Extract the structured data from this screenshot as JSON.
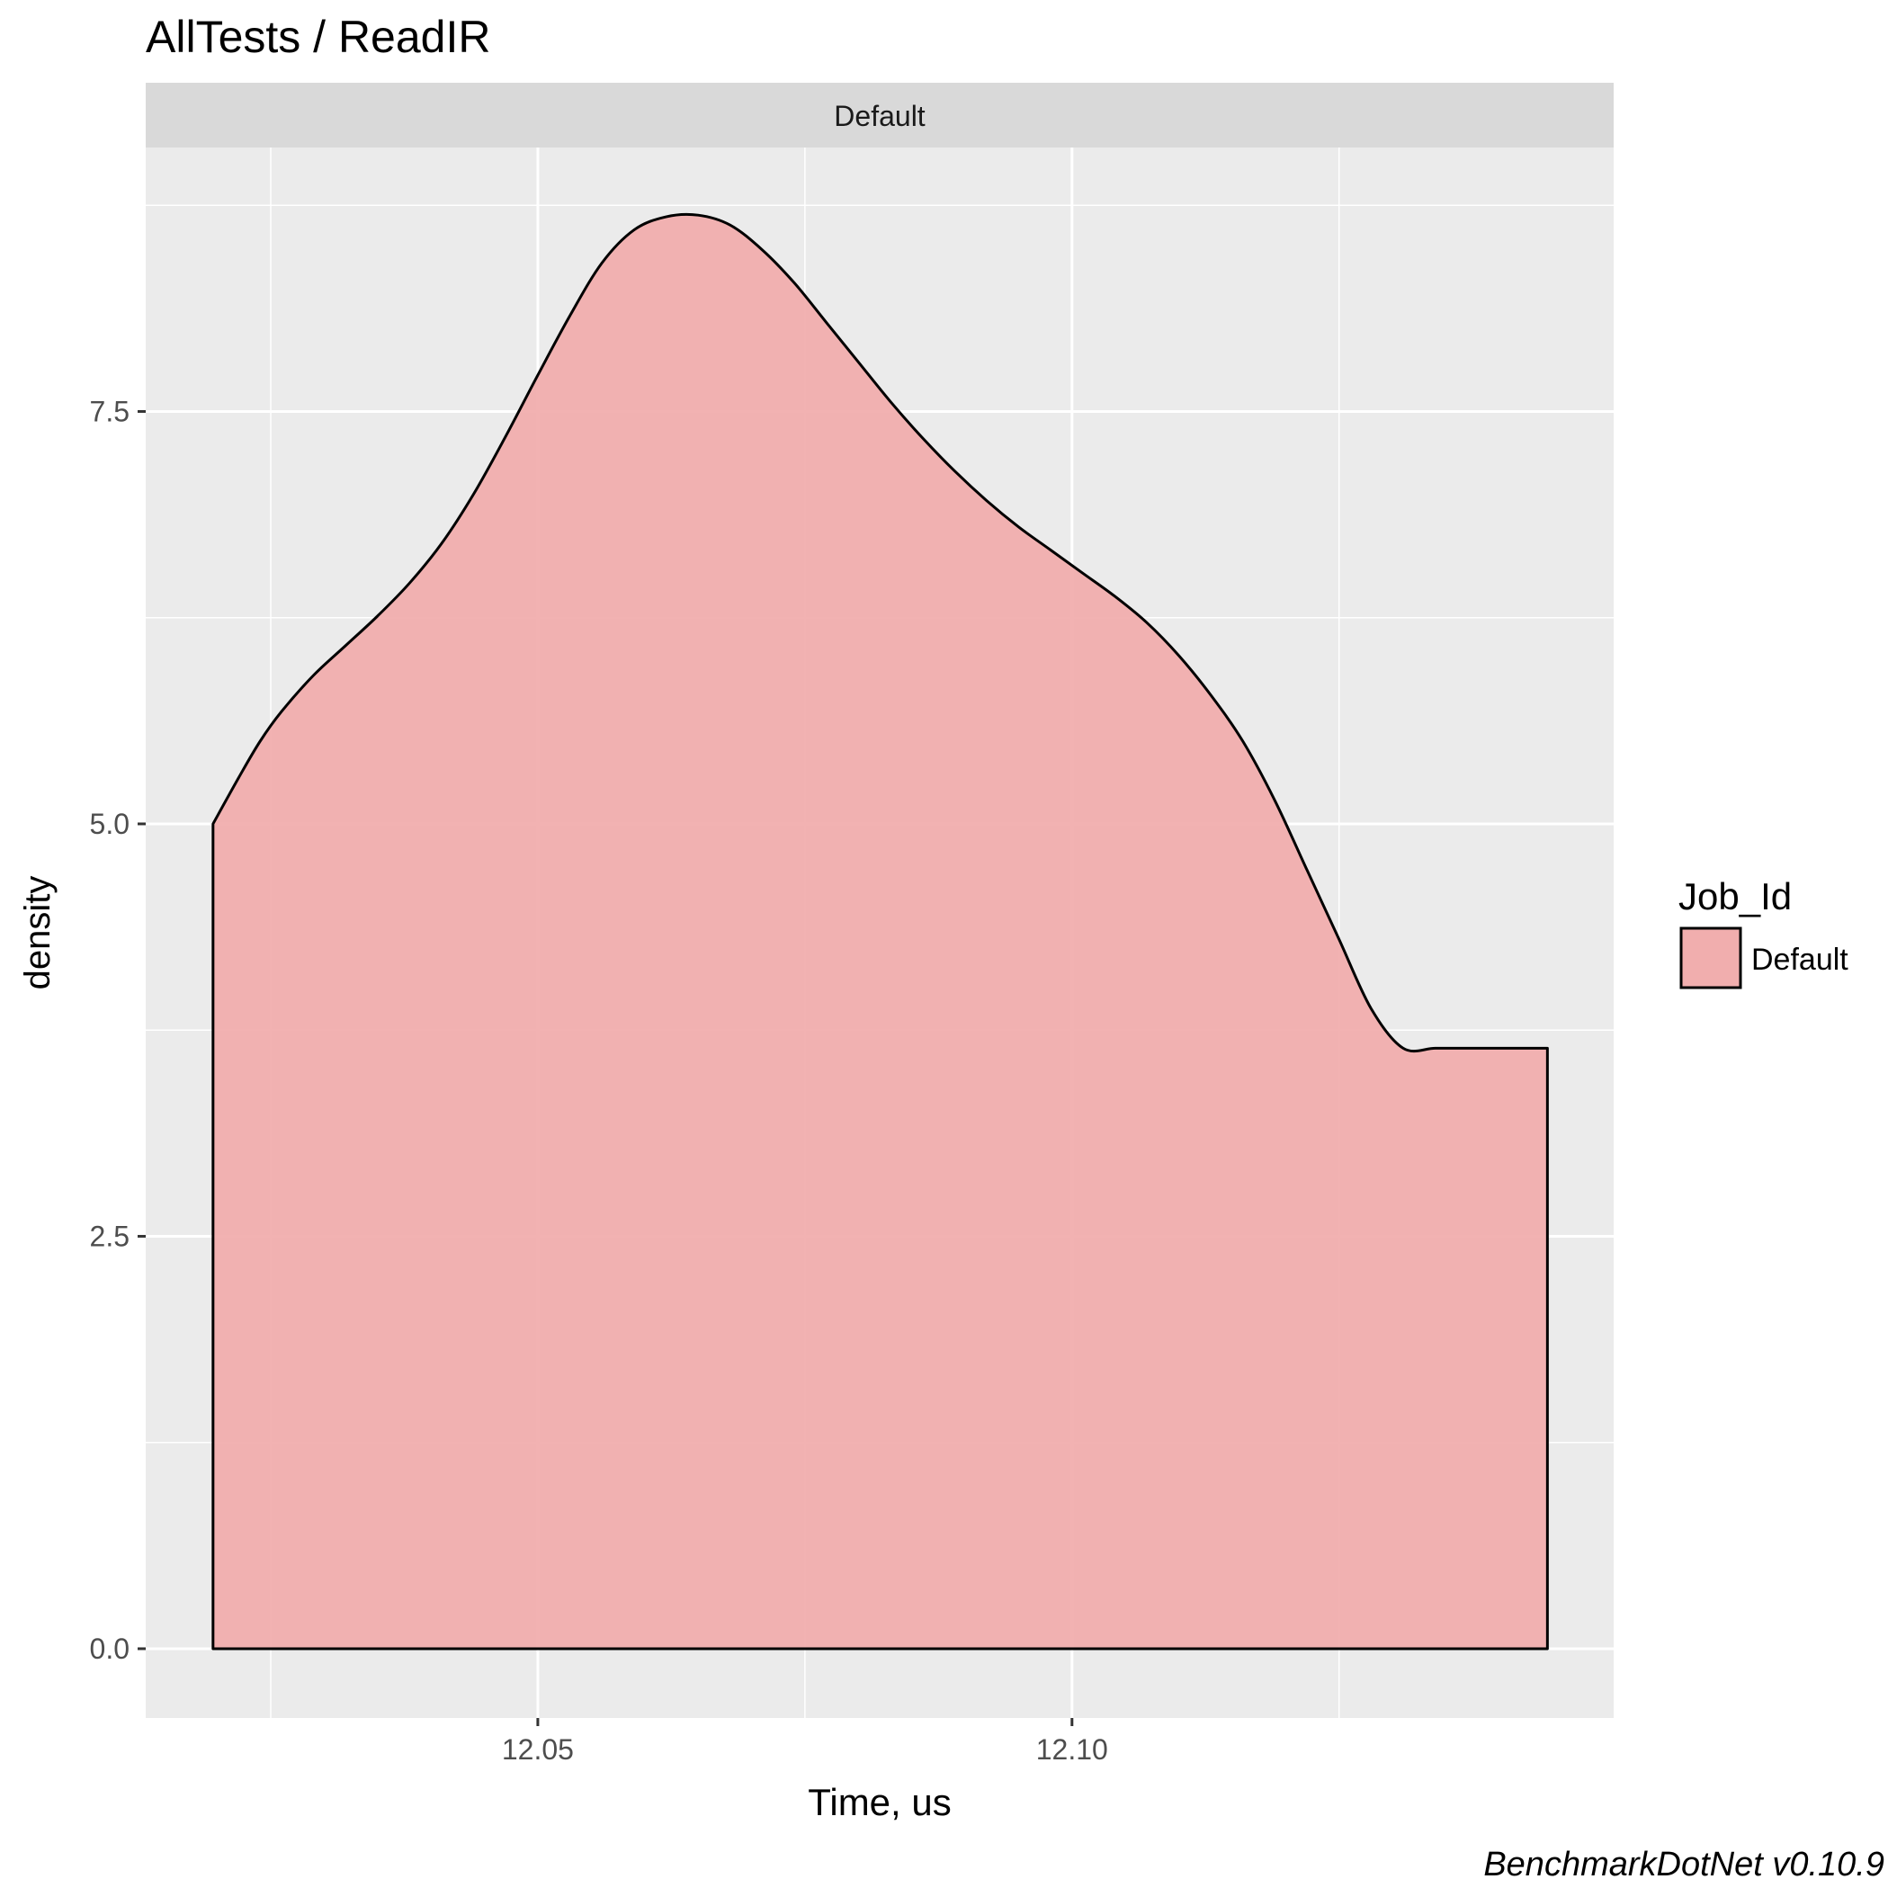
{
  "chart_data": {
    "type": "area",
    "title": "AllTests / ReadIR",
    "facet_label": "Default",
    "xlabel": "Time, us",
    "ylabel": "density",
    "x_ticks": [
      "12.05",
      "12.10"
    ],
    "x_tick_values": [
      12.05,
      12.1
    ],
    "y_ticks": [
      "0.0",
      "2.5",
      "5.0",
      "7.5"
    ],
    "y_tick_values": [
      0.0,
      2.5,
      5.0,
      7.5
    ],
    "xlim": [
      12.0133,
      12.1507
    ],
    "ylim": [
      -0.42,
      9.1
    ],
    "grid": true,
    "legend": {
      "title": "Job_Id",
      "placement": "right",
      "entries": [
        {
          "label": "Default",
          "color": "#f1aeae"
        }
      ]
    },
    "series": [
      {
        "name": "Default",
        "fill": "#f1aeae",
        "stroke": "#000000",
        "x": [
          12.0196,
          12.022,
          12.024,
          12.026,
          12.029,
          12.032,
          12.035,
          12.038,
          12.041,
          12.044,
          12.047,
          12.05,
          12.053,
          12.056,
          12.059,
          12.062,
          12.065,
          12.068,
          12.071,
          12.074,
          12.077,
          12.08,
          12.083,
          12.086,
          12.089,
          12.092,
          12.095,
          12.098,
          12.101,
          12.104,
          12.107,
          12.11,
          12.113,
          12.116,
          12.119,
          12.122,
          12.125,
          12.128,
          12.131,
          12.134,
          12.137,
          12.1395,
          12.1445
        ],
        "y": [
          5.0,
          5.28,
          5.5,
          5.68,
          5.9,
          6.08,
          6.26,
          6.46,
          6.7,
          7.0,
          7.35,
          7.72,
          8.08,
          8.4,
          8.6,
          8.68,
          8.69,
          8.63,
          8.48,
          8.28,
          8.04,
          7.8,
          7.56,
          7.34,
          7.14,
          6.96,
          6.8,
          6.66,
          6.52,
          6.38,
          6.22,
          6.02,
          5.78,
          5.5,
          5.14,
          4.72,
          4.3,
          3.88,
          3.64,
          3.64,
          3.64,
          3.64,
          0.0
        ]
      }
    ]
  },
  "caption": "BenchmarkDotNet v0.10.9"
}
